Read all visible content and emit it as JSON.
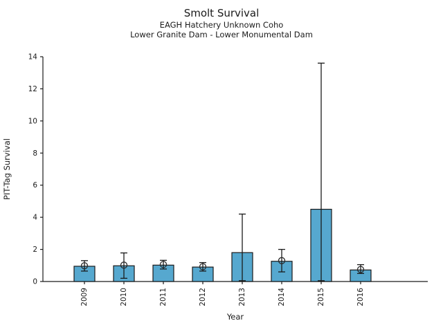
{
  "chart_data": {
    "type": "bar",
    "title": "Smolt Survival",
    "subtitle": [
      "EAGH Hatchery Unknown Coho",
      "Lower Granite Dam - Lower Monumental Dam"
    ],
    "xlabel": "Year",
    "ylabel": "PIT-Tag Survival",
    "categories": [
      "2009",
      "2010",
      "2011",
      "2012",
      "2013",
      "2014",
      "2015",
      "2016"
    ],
    "series": [
      {
        "name": "survival-bar",
        "values": [
          0.95,
          0.98,
          1.02,
          0.9,
          1.8,
          1.26,
          4.5,
          0.72
        ]
      },
      {
        "name": "point-estimate-marker",
        "values": [
          0.98,
          1.02,
          1.06,
          0.92,
          null,
          1.3,
          null,
          0.75
        ]
      }
    ],
    "error_low": [
      0.65,
      0.2,
      0.78,
      0.65,
      0.05,
      0.6,
      0.05,
      0.5
    ],
    "error_high": [
      1.3,
      1.78,
      1.32,
      1.18,
      4.2,
      2.0,
      13.6,
      1.05
    ],
    "ylim": [
      0,
      14
    ],
    "yticks": [
      0,
      2,
      4,
      6,
      8,
      10,
      12,
      14
    ],
    "xtick_rotation": 90,
    "grid": false,
    "legend_position": "none",
    "bar_color": "#56A8CF",
    "bar_edge_color": "#1a1a1a",
    "error_color": "#1a1a1a",
    "marker_style": "open-circle",
    "marker_color": "#2b2b2b",
    "axis_color": "#1a1a1a"
  }
}
